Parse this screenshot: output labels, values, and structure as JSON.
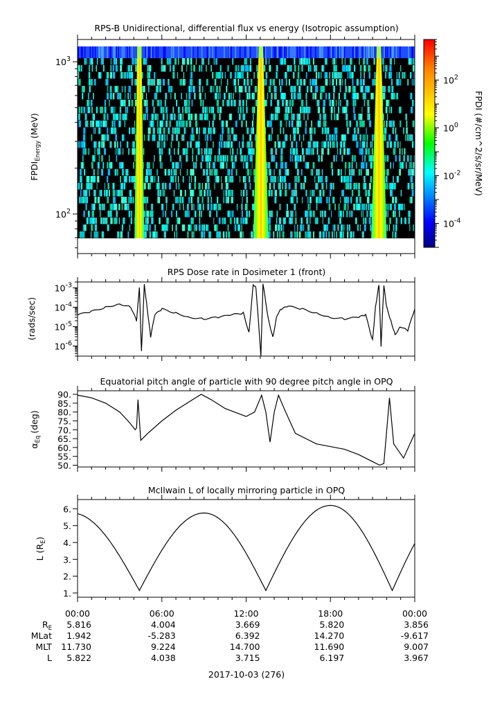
{
  "chart_data": [
    {
      "type": "heatmap",
      "title": "RPS-B  Unidirectional, differential flux vs energy (Isotropic assumption)",
      "ylabel_main": "FPDI",
      "ylabel_sub": "Energy",
      "ylabel_unit": "(MeV)",
      "y_scale": "log",
      "ylim": [
        55,
        1400
      ],
      "y_ticks": [
        {
          "value": 100,
          "base": "10",
          "exp": "2"
        },
        {
          "value": 1000,
          "base": "10",
          "exp": "3"
        }
      ],
      "colorbar": {
        "label": "FPDI (#/cm^2/s/sr/MeV)",
        "scale": "log",
        "range": [
          1e-05,
          5000
        ],
        "ticks": [
          {
            "value": 0.0001,
            "base": "10",
            "exp": "-4"
          },
          {
            "value": 0.01,
            "base": "10",
            "exp": "-2"
          },
          {
            "value": 1,
            "base": "10",
            "exp": "0"
          },
          {
            "value": 100,
            "base": "10",
            "exp": "2"
          }
        ]
      },
      "bands_hours": [
        4.05,
        4.75,
        12.5,
        13.6,
        20.9,
        22.0
      ]
    },
    {
      "type": "line",
      "title": "RPS  Dose rate in Dosimeter 1 (front)",
      "ylabel": "(rads/sec)",
      "y_scale": "log",
      "ylim": [
        3e-07,
        0.002
      ],
      "y_ticks": [
        {
          "value": 1e-06,
          "base": "10",
          "exp": "-6"
        },
        {
          "value": 1e-05,
          "base": "10",
          "exp": "-5"
        },
        {
          "value": 0.0001,
          "base": "10",
          "exp": "-4"
        },
        {
          "value": 0.001,
          "base": "10",
          "exp": "-3"
        }
      ],
      "x_hours": [
        0,
        1,
        2,
        3,
        3.8,
        4.2,
        4.4,
        4.55,
        4.75,
        4.95,
        5.2,
        5.5,
        6,
        7,
        8,
        9,
        10,
        11,
        11.8,
        12.2,
        12.5,
        12.7,
        13.05,
        13.2,
        13.6,
        13.9,
        14.2,
        14.5,
        15,
        16,
        17,
        18,
        19,
        20,
        20.5,
        21,
        21.2,
        21.45,
        21.6,
        21.8,
        22.0,
        22.3,
        22.6,
        23,
        23.5,
        24
      ],
      "values": [
        4e-05,
        6e-05,
        0.0001,
        0.00015,
        0.0001,
        2e-05,
        0.001,
        5e-07,
        0.0015,
        0.0001,
        3e-06,
        4e-05,
        8e-05,
        5e-05,
        3e-05,
        2.5e-05,
        3e-05,
        4e-05,
        5e-05,
        5e-06,
        0.0015,
        0.001,
        3e-07,
        0.0015,
        2e-05,
        3e-06,
        4e-05,
        8e-05,
        0.00011,
        8e-05,
        5e-05,
        3e-05,
        2.5e-05,
        3e-05,
        4e-05,
        2e-06,
        0.0001,
        0.0015,
        1e-06,
        0.0013,
        0.0001,
        2e-05,
        4e-06,
        1e-05,
        6e-06,
        8e-05
      ]
    },
    {
      "type": "line",
      "title": "Equatorial pitch angle of particle with 90 degree pitch angle in OPQ",
      "ylabel_main": "α",
      "ylabel_sub": "Eq",
      "ylabel_unit": "(deg)",
      "ylim": [
        49,
        92
      ],
      "y_ticks": [
        50,
        55,
        60,
        65,
        70,
        75,
        80,
        85,
        90
      ],
      "y_tick_labels": [
        "50.",
        "55.",
        "60.",
        "65.",
        "70.",
        "75.",
        "80.",
        "85.",
        "90."
      ],
      "x_hours": [
        0,
        1,
        2,
        3,
        3.7,
        4.1,
        4.2,
        4.3,
        4.5,
        5,
        6,
        7,
        8,
        8.8,
        9.5,
        10.5,
        11.5,
        12,
        12.6,
        13.1,
        13.4,
        13.7,
        14.0,
        14.3,
        14.7,
        15.5,
        17,
        19,
        20,
        21,
        21.5,
        21.8,
        22.2,
        22.5,
        23.2,
        24
      ],
      "values": [
        89.5,
        88,
        85,
        80,
        74,
        70,
        71,
        87,
        64,
        68,
        75,
        81,
        86,
        90,
        87,
        82,
        79,
        77.5,
        80,
        89.5,
        80,
        63,
        80,
        89.5,
        82,
        68,
        62,
        59,
        56,
        52,
        50,
        51,
        88,
        62,
        54,
        68
      ]
    },
    {
      "type": "line",
      "title": "McIlwain L of locally mirroring particle in OPQ",
      "ylabel_main": "L (R",
      "ylabel_sub": "E",
      "ylabel_unit": ")",
      "ylim": [
        0.75,
        6.55
      ],
      "y_ticks": [
        1,
        2,
        3,
        4,
        5,
        6
      ],
      "y_tick_labels": [
        "1.",
        "2.",
        "3.",
        "4.",
        "5.",
        "6."
      ],
      "model": {
        "min_hours": [
          4.4,
          13.4,
          22.4
        ],
        "peak_hours": [
          -0.4,
          9,
          18
        ],
        "peak_values": [
          5.75,
          5.75,
          6.2
        ],
        "min_value": 1.15
      }
    }
  ],
  "x_axis": {
    "tick_labels": [
      "00:00",
      "06:00",
      "12:00",
      "18:00",
      "00:00"
    ],
    "ephemeris_labels": [
      {
        "name": "R",
        "sub": "E"
      },
      {
        "name": "MLat",
        "sub": ""
      },
      {
        "name": "MLT",
        "sub": ""
      },
      {
        "name": "L",
        "sub": ""
      }
    ],
    "ephemeris_values": [
      [
        "5.816",
        "4.004",
        "3.669",
        "5.820",
        "3.856"
      ],
      [
        "1.942",
        "-5.283",
        "6.392",
        "14.270",
        "-9.617"
      ],
      [
        "11.730",
        "9.224",
        "14.700",
        "11.690",
        "9.007"
      ],
      [
        "5.822",
        "4.038",
        "3.715",
        "6.197",
        "3.967"
      ]
    ],
    "date_label": "2017-10-03 (276)"
  }
}
